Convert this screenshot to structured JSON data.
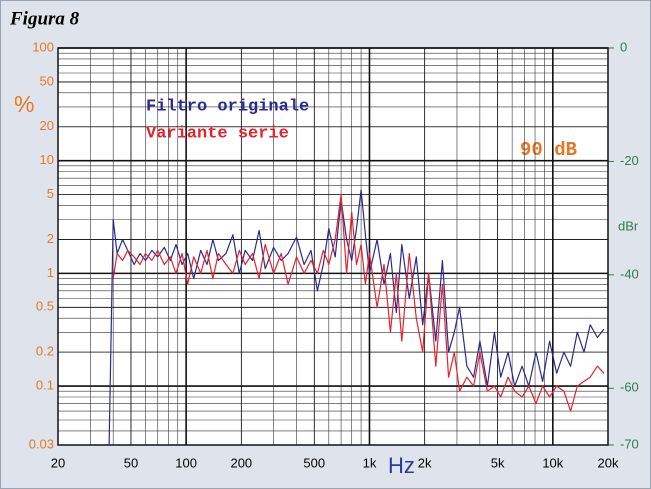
{
  "chart_data": {
    "type": "line",
    "title": "Figura 8",
    "ylabel": "%",
    "xlabel": "Hz",
    "y2label": "dBr",
    "annotation": "90 dB",
    "log_x": true,
    "log_y": true,
    "grid": true,
    "xlim": [
      20,
      20000
    ],
    "xticks": [
      20,
      50,
      100,
      200,
      500,
      {
        "value": 1000,
        "label": "1k"
      },
      {
        "value": 2000,
        "label": "2k"
      },
      {
        "value": 5000,
        "label": "5k"
      },
      {
        "value": 10000,
        "label": "10k"
      },
      {
        "value": 20000,
        "label": "20k"
      }
    ],
    "ylim": [
      0.03,
      100
    ],
    "yticks": [
      0.03,
      0.1,
      0.2,
      0.5,
      1,
      2,
      5,
      10,
      20,
      50,
      100
    ],
    "y2lim": [
      -70,
      0
    ],
    "y2ticks": [
      -70,
      -60,
      -40,
      -20,
      0
    ],
    "x": [
      38,
      40,
      42,
      45,
      48,
      52,
      56,
      60,
      65,
      70,
      76,
      82,
      88,
      95,
      102,
      110,
      120,
      130,
      140,
      150,
      165,
      180,
      195,
      210,
      230,
      250,
      270,
      300,
      330,
      360,
      400,
      440,
      480,
      520,
      560,
      600,
      650,
      700,
      750,
      800,
      850,
      900,
      950,
      1000,
      1100,
      1200,
      1300,
      1400,
      1500,
      1650,
      1800,
      1950,
      2100,
      2300,
      2500,
      2700,
      2900,
      3100,
      3400,
      3700,
      4000,
      4400,
      4800,
      5200,
      5700,
      6200,
      6800,
      7400,
      8100,
      8800,
      9600,
      10500,
      11500,
      12500,
      13600,
      14800,
      16000,
      17500,
      19000
    ],
    "series": [
      {
        "name": "Filtro originale",
        "color": "#2b2b8f",
        "values": [
          0.03,
          3.0,
          1.5,
          2.0,
          1.6,
          1.2,
          1.5,
          1.3,
          1.6,
          1.4,
          1.7,
          1.3,
          1.8,
          1.2,
          1.5,
          0.9,
          1.6,
          1.2,
          2.0,
          1.3,
          1.5,
          2.2,
          1.0,
          1.6,
          1.3,
          2.4,
          1.1,
          1.7,
          1.3,
          1.5,
          2.1,
          1.2,
          1.6,
          0.7,
          1.2,
          2.5,
          1.4,
          4.5,
          2.0,
          1.3,
          2.5,
          5.5,
          2.2,
          1.0,
          2.0,
          0.8,
          1.5,
          0.45,
          1.8,
          0.6,
          1.4,
          0.35,
          1.0,
          0.25,
          1.3,
          0.2,
          0.3,
          0.5,
          0.15,
          0.12,
          0.25,
          0.1,
          0.3,
          0.12,
          0.2,
          0.1,
          0.15,
          0.1,
          0.2,
          0.11,
          0.25,
          0.13,
          0.2,
          0.15,
          0.3,
          0.2,
          0.35,
          0.27,
          0.32
        ]
      },
      {
        "name": "Variante serie",
        "color": "#e8222b",
        "values": [
          null,
          0.9,
          1.5,
          1.3,
          1.6,
          1.4,
          1.2,
          1.5,
          1.3,
          1.6,
          1.2,
          1.4,
          1.0,
          1.5,
          0.8,
          1.4,
          1.0,
          1.6,
          0.9,
          1.5,
          1.2,
          1.0,
          1.6,
          1.2,
          1.5,
          0.9,
          1.8,
          1.0,
          1.5,
          0.8,
          1.4,
          1.0,
          1.3,
          1.0,
          1.6,
          1.2,
          2.0,
          5.0,
          1.0,
          3.5,
          1.2,
          1.8,
          0.8,
          1.5,
          0.5,
          1.2,
          0.3,
          1.0,
          0.25,
          1.5,
          0.4,
          0.2,
          1.0,
          0.15,
          0.8,
          0.12,
          0.2,
          0.09,
          0.12,
          0.1,
          0.2,
          0.09,
          0.1,
          0.08,
          0.12,
          0.09,
          0.08,
          0.1,
          0.07,
          0.1,
          0.08,
          0.1,
          0.09,
          0.06,
          0.1,
          0.11,
          0.12,
          0.15,
          0.13
        ]
      }
    ]
  }
}
